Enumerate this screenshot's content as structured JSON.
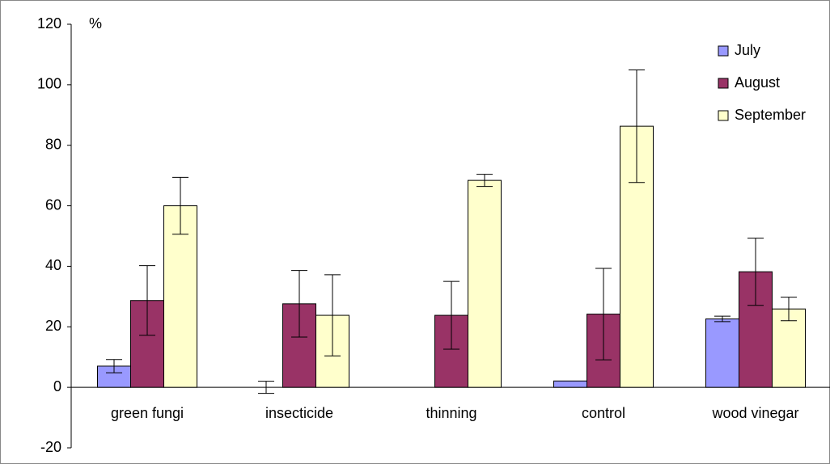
{
  "chart_data": {
    "type": "bar",
    "y_label": "%",
    "categories": [
      "green fungi",
      "insecticide",
      "thinning",
      "control",
      "wood vinegar"
    ],
    "series": [
      {
        "name": "July",
        "color": "#9999ff",
        "values": [
          7,
          0,
          0,
          2.1,
          22.6
        ],
        "errors": [
          2.2,
          2,
          null,
          null,
          0.9
        ]
      },
      {
        "name": "August",
        "color": "#993366",
        "values": [
          28.7,
          27.6,
          23.8,
          24.2,
          38.2
        ],
        "errors": [
          11.5,
          11,
          11.2,
          15.1,
          11.1
        ]
      },
      {
        "name": "September",
        "color": "#ffffcc",
        "values": [
          60,
          23.8,
          68.4,
          86.3,
          25.9
        ],
        "errors": [
          9.4,
          13.4,
          2,
          18.6,
          3.9
        ]
      }
    ],
    "ylim": [
      -20,
      120
    ],
    "yticks": [
      -20,
      0,
      20,
      40,
      60,
      80,
      100,
      120
    ],
    "legend": "top-right"
  }
}
